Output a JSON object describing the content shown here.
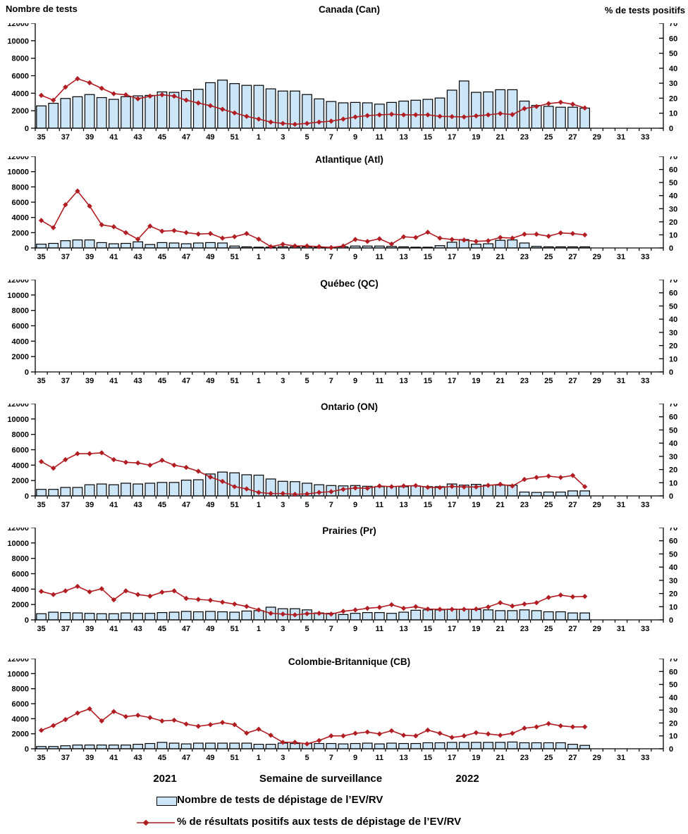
{
  "page": {
    "left_axis_header": "Nombre de tests",
    "right_axis_header": "% de tests positifs",
    "x_axis_title": "Semaine de surveillance",
    "year_left": "2021",
    "year_right": "2022",
    "legend": {
      "tests_label": "Nombre de tests de dépistage de l’EV/RV",
      "pct_label": "% de résultats positifs aux tests de dépistage de l’EV/RV"
    },
    "colors": {
      "bar_fill": "#cde6f7",
      "bar_stroke": "#000000",
      "line": "#b01e23",
      "text": "#000000"
    }
  },
  "chart_data": {
    "type": "bar",
    "subtype": "multi-panel bar + line (dual axis)",
    "left_axis": {
      "label": "Nombre de tests",
      "range": [
        0,
        12000
      ],
      "step": 2000
    },
    "right_axis": {
      "label": "% de tests positifs",
      "range": [
        0,
        70
      ],
      "step": 10
    },
    "x": {
      "axis_title": "Semaine de surveillance",
      "weeks": [
        35,
        36,
        37,
        38,
        39,
        40,
        41,
        42,
        43,
        44,
        45,
        46,
        47,
        48,
        49,
        50,
        51,
        52,
        1,
        2,
        3,
        4,
        5,
        6,
        7,
        8,
        9,
        10,
        11,
        12,
        13,
        14,
        15,
        16,
        17,
        18,
        19,
        20,
        21,
        22,
        23,
        24,
        25,
        26,
        27,
        28
      ],
      "total_slots": 52,
      "tick_labels": [
        35,
        37,
        39,
        41,
        43,
        45,
        47,
        49,
        51,
        1,
        3,
        5,
        7,
        9,
        11,
        13,
        15,
        17,
        19,
        21,
        23,
        25,
        27,
        29,
        31,
        33
      ],
      "year_left": "2021",
      "year_right": "2022"
    },
    "panels": [
      {
        "title": "Canada (Can)",
        "tests": [
          2550,
          2850,
          3400,
          3600,
          3850,
          3500,
          3300,
          3600,
          3700,
          3750,
          4150,
          4100,
          4300,
          4450,
          5200,
          5500,
          5100,
          4900,
          4900,
          4500,
          4250,
          4250,
          3850,
          3350,
          3050,
          2900,
          2950,
          2900,
          2750,
          2950,
          3100,
          3200,
          3300,
          3450,
          4350,
          5400,
          4100,
          4150,
          4400,
          4400,
          3100,
          2600,
          2500,
          2400,
          2400,
          2300
        ],
        "pct_positive": [
          21.9,
          18.7,
          27.4,
          33,
          30.3,
          26.6,
          23,
          22.3,
          19.6,
          21.4,
          22.3,
          21.4,
          18.7,
          16.8,
          15,
          12.6,
          10.2,
          7.9,
          6.1,
          4.1,
          3.2,
          2.6,
          3.2,
          4.1,
          4.7,
          6.1,
          7.5,
          8.4,
          8.9,
          9.3,
          8.9,
          8.9,
          8.9,
          7.9,
          7.7,
          7.5,
          8.2,
          8.9,
          9.8,
          9.1,
          13.1,
          14.5,
          16.4,
          17.3,
          16,
          13.5
        ]
      },
      {
        "title": "Atlantique (Atl)",
        "tests": [
          500,
          600,
          950,
          1050,
          1050,
          700,
          550,
          600,
          800,
          450,
          700,
          650,
          550,
          650,
          700,
          650,
          250,
          150,
          100,
          100,
          150,
          150,
          150,
          100,
          100,
          150,
          250,
          250,
          250,
          200,
          150,
          100,
          100,
          300,
          750,
          1100,
          500,
          550,
          1000,
          1050,
          650,
          200,
          150,
          150,
          150,
          150
        ],
        "pct_positive": [
          21,
          15.5,
          33,
          43.5,
          32,
          17.7,
          16.2,
          11.7,
          6.7,
          16.7,
          12.8,
          13.3,
          11.7,
          10.6,
          11,
          7.5,
          8.6,
          11,
          6.7,
          1,
          2.8,
          1.5,
          1.5,
          1,
          0.3,
          1.5,
          6.5,
          5,
          7,
          3,
          8.5,
          8,
          12,
          7.5,
          6.5,
          6,
          5,
          5.5,
          8,
          7.5,
          10.5,
          10.5,
          9,
          11.5,
          11,
          10
        ]
      },
      {
        "title": "Québec (QC)",
        "tests": [],
        "pct_positive": []
      },
      {
        "title": "Ontario (ON)",
        "tests": [
          850,
          850,
          1100,
          1100,
          1450,
          1550,
          1450,
          1650,
          1550,
          1650,
          1750,
          1750,
          2050,
          2100,
          2850,
          3100,
          3000,
          2750,
          2700,
          2200,
          1900,
          1850,
          1650,
          1450,
          1350,
          1300,
          1350,
          1250,
          1200,
          1200,
          1200,
          1300,
          1200,
          1200,
          1550,
          1400,
          1500,
          1400,
          1400,
          1400,
          500,
          450,
          500,
          500,
          650,
          650
        ],
        "pct_positive": [
          26,
          21,
          27.5,
          32,
          32,
          32.7,
          27.5,
          25.5,
          25,
          23.3,
          27,
          23.3,
          21.6,
          18.7,
          14.3,
          11,
          7,
          5.3,
          2.6,
          1.8,
          1.8,
          1.2,
          1.5,
          2.6,
          3.2,
          5,
          6,
          5.8,
          7.5,
          7,
          7.5,
          7.8,
          6.5,
          6.3,
          7.2,
          6.8,
          6.8,
          8,
          8.8,
          7.5,
          12.5,
          14,
          15,
          14,
          15.5,
          7
        ]
      },
      {
        "title": "Prairies (Pr)",
        "tests": [
          800,
          1000,
          950,
          900,
          850,
          800,
          800,
          900,
          850,
          850,
          950,
          1000,
          1100,
          1050,
          1100,
          1050,
          1000,
          1150,
          1200,
          1650,
          1450,
          1450,
          1300,
          900,
          850,
          700,
          850,
          950,
          950,
          850,
          1000,
          1250,
          1300,
          1300,
          1400,
          1400,
          1350,
          1300,
          1200,
          1200,
          1300,
          1200,
          1050,
          1050,
          900,
          900
        ],
        "pct_positive": [
          21.6,
          19.2,
          22,
          25.4,
          21.3,
          23.6,
          15.2,
          22,
          19.2,
          18,
          21,
          22,
          16.3,
          15.5,
          14.9,
          13.4,
          12,
          10.2,
          7.6,
          5,
          4.4,
          3.8,
          4.7,
          5,
          4.4,
          6.5,
          7.5,
          8.8,
          9.5,
          11.5,
          8.8,
          10,
          8.2,
          8,
          8,
          8,
          8.2,
          9.8,
          13,
          10.5,
          12,
          13,
          17,
          18.8,
          17.5,
          17.8
        ],
        "note": ""
      },
      {
        "title": "Colombie-Britannique (CB)",
        "tests": [
          300,
          300,
          400,
          500,
          500,
          500,
          500,
          500,
          600,
          700,
          850,
          750,
          650,
          750,
          750,
          750,
          750,
          750,
          600,
          600,
          750,
          700,
          700,
          700,
          700,
          650,
          700,
          750,
          650,
          750,
          700,
          700,
          800,
          800,
          850,
          850,
          850,
          850,
          850,
          900,
          800,
          800,
          800,
          800,
          600,
          450
        ],
        "pct_positive": [
          14.3,
          18,
          22.7,
          27.7,
          31,
          21.6,
          28.9,
          25,
          26,
          24.2,
          21.6,
          22.2,
          19.2,
          17.5,
          18.7,
          20.4,
          18.7,
          12.2,
          15.2,
          10.5,
          5,
          5,
          3.8,
          6.4,
          10,
          10,
          12,
          13,
          11.5,
          14,
          10.5,
          10,
          14.5,
          12,
          8.8,
          10,
          12.5,
          11.5,
          10.5,
          12,
          16,
          17,
          19.5,
          17.8,
          17,
          17
        ]
      }
    ],
    "legend_entries": [
      {
        "type": "bar",
        "label": "Nombre de tests de dépistage de l’EV/RV"
      },
      {
        "type": "line",
        "label": "% de résultats positifs aux tests de dépistage de l’EV/RV"
      }
    ]
  }
}
